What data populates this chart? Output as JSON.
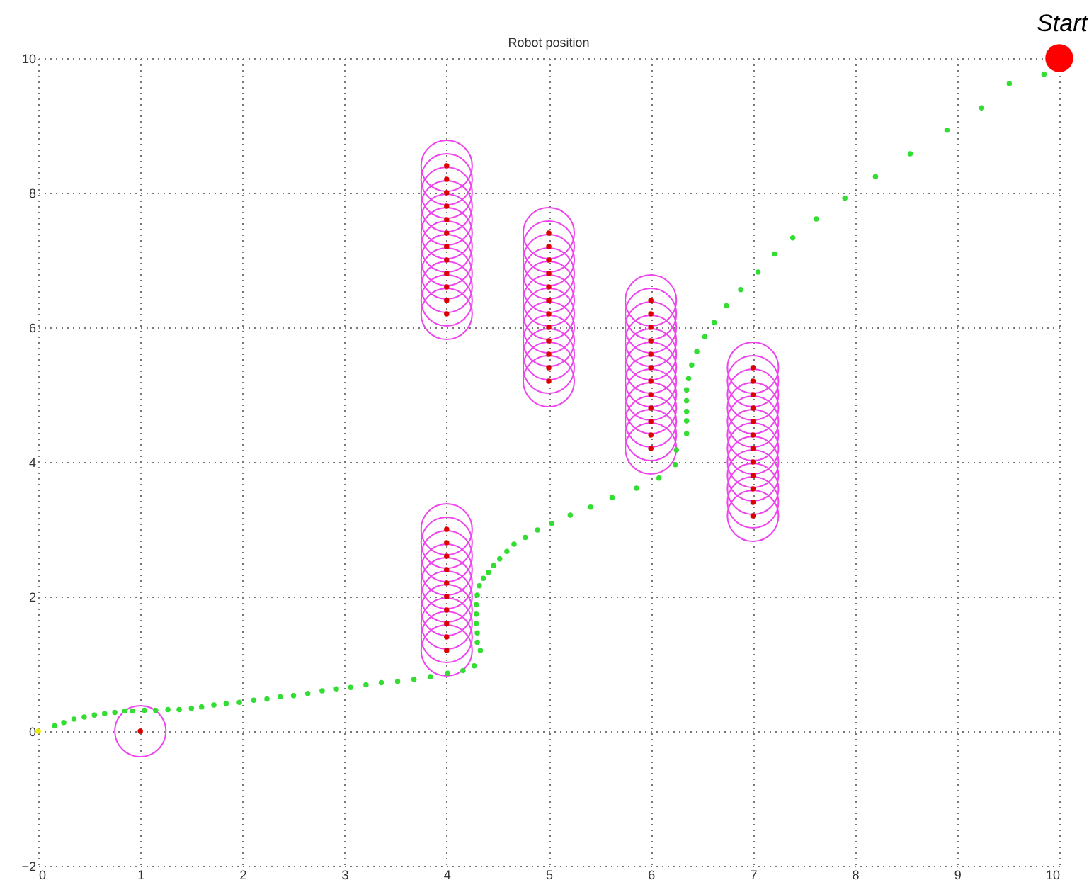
{
  "chart_data": {
    "type": "scatter",
    "title": "Robot position",
    "xlim": [
      0,
      10
    ],
    "xticks": [
      0,
      1,
      2,
      3,
      4,
      5,
      6,
      7,
      8,
      9,
      10
    ],
    "ylim": [
      -2,
      10
    ],
    "yticks": [
      -2,
      0,
      2,
      4,
      6,
      8,
      10
    ],
    "grid": true,
    "marker": "circle",
    "annotations": [
      {
        "text": "Start",
        "x": 10,
        "y": 10
      }
    ],
    "series": [
      {
        "type": "bubble",
        "color": "#ee44ee",
        "line_style": "solid",
        "x": [
          1,
          4,
          4,
          4,
          4,
          4,
          4,
          4,
          4,
          4,
          4,
          4,
          4,
          4,
          4,
          4,
          4,
          4,
          4,
          4,
          4,
          4,
          4,
          5,
          5,
          5,
          5,
          5,
          5,
          5,
          5,
          5,
          5,
          5,
          5,
          6,
          6,
          6,
          6,
          6,
          6,
          6,
          6,
          6,
          6,
          6,
          6,
          7,
          7,
          7,
          7,
          7,
          7,
          7,
          7,
          7,
          7,
          7,
          7
        ],
        "values": [
          0,
          8.4,
          8.2,
          8.0,
          7.8,
          7.6,
          7.4,
          7.2,
          7.0,
          6.8,
          6.6,
          6.4,
          6.2,
          3.0,
          2.8,
          2.6,
          2.4,
          2.2,
          2.0,
          1.8,
          1.6,
          1.4,
          1.2,
          7.4,
          7.2,
          7.0,
          6.8,
          6.6,
          6.4,
          6.2,
          6.0,
          5.8,
          5.6,
          5.4,
          5.2,
          6.4,
          6.2,
          6.0,
          5.8,
          5.6,
          5.4,
          5.2,
          5.0,
          4.8,
          4.6,
          4.4,
          4.2,
          5.4,
          5.2,
          5.0,
          4.8,
          4.6,
          4.4,
          4.2,
          4.0,
          3.8,
          3.6,
          3.4,
          3.2
        ],
        "sizes": [
          1,
          1,
          1,
          1,
          1,
          1,
          1,
          1,
          1,
          1,
          1,
          1,
          1,
          1,
          1,
          1,
          1,
          1,
          1,
          1,
          1,
          1,
          1,
          1,
          1,
          1,
          1,
          1,
          1,
          1,
          1,
          1,
          1,
          1,
          1,
          1,
          1,
          1,
          1,
          1,
          1,
          1,
          1,
          1,
          1,
          1,
          1,
          1,
          1,
          1,
          1,
          1,
          1,
          1,
          1,
          1,
          1,
          1,
          1
        ]
      },
      {
        "type": "scatter",
        "color": "#dd0000",
        "x": [
          1,
          4,
          4,
          4,
          4,
          4,
          4,
          4,
          4,
          4,
          4,
          4,
          4,
          4,
          4,
          4,
          4,
          4,
          4,
          4,
          4,
          4,
          4,
          5,
          5,
          5,
          5,
          5,
          5,
          5,
          5,
          5,
          5,
          5,
          5,
          6,
          6,
          6,
          6,
          6,
          6,
          6,
          6,
          6,
          6,
          6,
          6,
          7,
          7,
          7,
          7,
          7,
          7,
          7,
          7,
          7,
          7,
          7,
          7
        ],
        "values": [
          0,
          8.4,
          8.2,
          8.0,
          7.8,
          7.6,
          7.4,
          7.2,
          7.0,
          6.8,
          6.6,
          6.4,
          6.2,
          3.0,
          2.8,
          2.6,
          2.4,
          2.2,
          2.0,
          1.8,
          1.6,
          1.4,
          1.2,
          7.4,
          7.2,
          7.0,
          6.8,
          6.6,
          6.4,
          6.2,
          6.0,
          5.8,
          5.6,
          5.4,
          5.2,
          6.4,
          6.2,
          6.0,
          5.8,
          5.6,
          5.4,
          5.2,
          5.0,
          4.8,
          4.6,
          4.4,
          4.2,
          5.4,
          5.2,
          5.0,
          4.8,
          4.6,
          4.4,
          4.2,
          4.0,
          3.8,
          3.6,
          3.4,
          3.2
        ]
      },
      {
        "color": "#33dd33",
        "x": [
          9.85,
          9.51,
          9.24,
          8.9,
          8.54,
          8.2,
          7.9,
          7.62,
          7.39,
          7.21,
          7.05,
          6.88,
          6.74,
          6.62,
          6.53,
          6.45,
          6.4,
          6.37,
          6.35,
          6.35,
          6.35,
          6.35,
          6.35,
          6.25,
          6.24,
          6.08,
          5.86,
          5.62,
          5.41,
          5.21,
          5.03,
          4.89,
          4.77,
          4.66,
          4.59,
          4.52,
          4.46,
          4.41,
          4.36,
          4.32,
          4.3,
          4.29,
          4.29,
          4.29,
          4.3,
          4.3,
          4.33,
          4.27,
          4.16,
          4.01,
          3.84,
          3.68,
          3.52,
          3.36,
          3.21,
          3.06,
          2.92,
          2.78,
          2.64,
          2.5,
          2.37,
          2.24,
          2.11,
          1.97,
          1.84,
          1.72,
          1.6,
          1.5,
          1.38,
          1.27,
          1.15,
          1.04,
          0.92,
          0.85,
          0.75,
          0.65,
          0.55,
          0.45,
          0.35,
          0.25,
          0.16
        ],
        "values": [
          9.76,
          9.62,
          9.26,
          8.93,
          8.58,
          8.24,
          7.92,
          7.61,
          7.33,
          7.09,
          6.82,
          6.56,
          6.32,
          6.07,
          5.86,
          5.64,
          5.44,
          5.24,
          5.07,
          4.91,
          4.75,
          4.61,
          4.42,
          4.18,
          3.96,
          3.76,
          3.61,
          3.47,
          3.33,
          3.21,
          3.09,
          2.99,
          2.88,
          2.78,
          2.67,
          2.56,
          2.46,
          2.36,
          2.27,
          2.16,
          2.02,
          1.88,
          1.74,
          1.6,
          1.46,
          1.32,
          1.2,
          0.97,
          0.9,
          0.86,
          0.81,
          0.77,
          0.74,
          0.72,
          0.69,
          0.65,
          0.63,
          0.6,
          0.56,
          0.53,
          0.51,
          0.48,
          0.46,
          0.43,
          0.41,
          0.39,
          0.36,
          0.34,
          0.32,
          0.32,
          0.31,
          0.31,
          0.3,
          0.3,
          0.28,
          0.26,
          0.24,
          0.21,
          0.18,
          0.13,
          0.08
        ]
      },
      {
        "type": "scatter",
        "color": "#e8e800",
        "x": [
          0
        ],
        "values": [
          0
        ]
      },
      {
        "type": "bubble",
        "color": "#ff0000",
        "x": [
          10
        ],
        "values": [
          10
        ],
        "sizes": [
          0.3
        ]
      }
    ]
  }
}
